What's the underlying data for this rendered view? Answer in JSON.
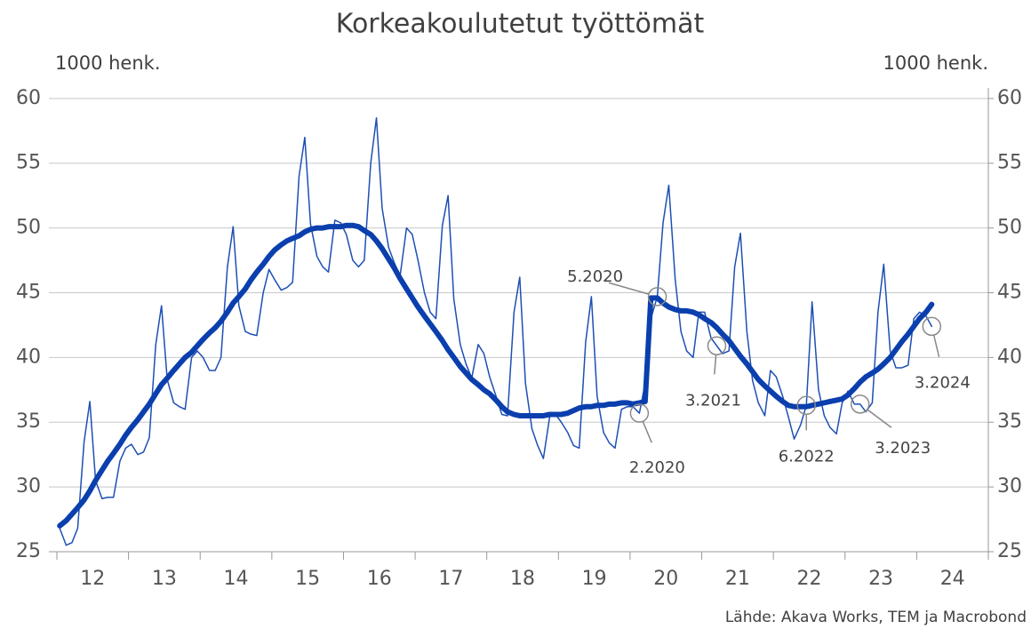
{
  "chart_data": {
    "type": "line",
    "title": "Korkeakoulutetut työttömät",
    "y_unit_left": "1000 henk.",
    "y_unit_right": "1000 henk.",
    "source": "Lähde: Akava Works, TEM ja Macrobond",
    "xlim": [
      12,
      25
    ],
    "xticks": [
      {
        "value": 12.5,
        "label": "12"
      },
      {
        "value": 13.5,
        "label": "13"
      },
      {
        "value": 14.5,
        "label": "14"
      },
      {
        "value": 15.5,
        "label": "15"
      },
      {
        "value": 16.5,
        "label": "16"
      },
      {
        "value": 17.5,
        "label": "17"
      },
      {
        "value": 18.5,
        "label": "18"
      },
      {
        "value": 19.5,
        "label": "19"
      },
      {
        "value": 20.5,
        "label": "20"
      },
      {
        "value": 21.5,
        "label": "21"
      },
      {
        "value": 22.5,
        "label": "22"
      },
      {
        "value": 23.5,
        "label": "23"
      },
      {
        "value": 24.5,
        "label": "24"
      }
    ],
    "ylim": [
      25,
      61.5
    ],
    "yticks": [
      25,
      30,
      35,
      40,
      45,
      50,
      55,
      60
    ],
    "grid": true,
    "x": [
      12.04,
      12.13,
      12.21,
      12.29,
      12.38,
      12.46,
      12.54,
      12.63,
      12.71,
      12.79,
      12.88,
      12.96,
      13.04,
      13.13,
      13.21,
      13.29,
      13.38,
      13.46,
      13.54,
      13.63,
      13.71,
      13.79,
      13.88,
      13.96,
      14.04,
      14.13,
      14.21,
      14.29,
      14.38,
      14.46,
      14.54,
      14.63,
      14.71,
      14.79,
      14.88,
      14.96,
      15.04,
      15.13,
      15.21,
      15.29,
      15.38,
      15.46,
      15.54,
      15.63,
      15.71,
      15.79,
      15.88,
      15.96,
      16.04,
      16.13,
      16.21,
      16.29,
      16.38,
      16.46,
      16.54,
      16.63,
      16.71,
      16.79,
      16.88,
      16.96,
      17.04,
      17.13,
      17.21,
      17.29,
      17.38,
      17.46,
      17.54,
      17.63,
      17.71,
      17.79,
      17.88,
      17.96,
      18.04,
      18.13,
      18.21,
      18.29,
      18.38,
      18.46,
      18.54,
      18.63,
      18.71,
      18.79,
      18.88,
      18.96,
      19.04,
      19.13,
      19.21,
      19.29,
      19.38,
      19.46,
      19.54,
      19.63,
      19.71,
      19.79,
      19.88,
      19.96,
      20.04,
      20.13,
      20.21,
      20.29,
      20.38,
      20.46,
      20.54,
      20.63,
      20.71,
      20.79,
      20.88,
      20.96,
      21.04,
      21.13,
      21.21,
      21.29,
      21.38,
      21.46,
      21.54,
      21.63,
      21.71,
      21.79,
      21.88,
      21.96,
      22.04,
      22.13,
      22.21,
      22.29,
      22.38,
      22.46,
      22.54,
      22.63,
      22.71,
      22.79,
      22.88,
      22.96,
      23.04,
      23.13,
      23.21,
      23.29,
      23.38,
      23.46,
      23.54,
      23.63,
      23.71,
      23.79,
      23.88,
      23.96,
      24.04,
      24.13,
      24.21
    ],
    "series": [
      {
        "color": "#1d4fb4",
        "width": 1.5,
        "values": [
          26.8,
          25.5,
          25.7,
          26.8,
          33.5,
          36.6,
          30.5,
          29.1,
          29.2,
          29.2,
          32,
          33,
          33.3,
          32.5,
          32.7,
          33.8,
          41,
          44,
          38.3,
          36.5,
          36.2,
          36,
          40,
          40.5,
          40,
          39,
          39,
          40,
          47,
          50.1,
          44,
          42,
          41.8,
          41.7,
          45,
          46.8,
          46,
          45.2,
          45.4,
          45.8,
          54,
          57,
          50.3,
          47.8,
          47,
          46.6,
          50.6,
          50.4,
          49.5,
          47.5,
          47,
          47.5,
          55,
          58.5,
          51.5,
          48.5,
          47.3,
          46.3,
          50,
          49.5,
          47.5,
          45,
          43.5,
          43,
          50.2,
          52.5,
          44.5,
          41,
          39.5,
          38.4,
          41,
          40.3,
          38.5,
          37,
          35.6,
          35.5,
          43.5,
          46.2,
          38,
          34.5,
          33.2,
          32.2,
          35.5,
          35.6,
          35,
          34.2,
          33.2,
          33,
          41.2,
          44.7,
          37,
          34.2,
          33.4,
          33,
          36,
          36.2,
          36.2,
          35.7,
          38,
          43,
          44.7,
          50.4,
          53.3,
          46,
          42,
          40.5,
          40,
          43.5,
          43.5,
          41.5,
          40.9,
          40.3,
          40.5,
          47,
          49.6,
          42,
          38.2,
          36.5,
          35.5,
          39,
          38.5,
          37,
          35.4,
          33.7,
          34.8,
          36.3,
          44.3,
          37.5,
          35.5,
          34.6,
          34.1,
          36.5,
          37.4,
          36.4,
          36.4,
          35.8,
          36.5,
          43.5,
          47.2,
          40.5,
          39.2,
          39.2,
          39.4,
          43,
          43.5,
          43.2,
          42.4
        ]
      },
      {
        "color": "#0a3fad",
        "width": 6,
        "values": [
          27,
          27.4,
          27.9,
          28.4,
          29,
          29.7,
          30.5,
          31.3,
          32,
          32.6,
          33.3,
          34,
          34.6,
          35.2,
          35.8,
          36.4,
          37.2,
          37.9,
          38.4,
          39,
          39.5,
          40,
          40.4,
          40.9,
          41.4,
          41.9,
          42.3,
          42.8,
          43.5,
          44.2,
          44.7,
          45.3,
          46,
          46.6,
          47.2,
          47.8,
          48.3,
          48.7,
          49,
          49.2,
          49.4,
          49.7,
          49.9,
          50,
          50,
          50.1,
          50.1,
          50.1,
          50.2,
          50.2,
          50.1,
          49.8,
          49.5,
          49,
          48.4,
          47.6,
          46.9,
          46.1,
          45.3,
          44.6,
          43.9,
          43.2,
          42.6,
          42,
          41.3,
          40.6,
          40,
          39.3,
          38.8,
          38.3,
          37.9,
          37.5,
          37.2,
          36.7,
          36.2,
          35.8,
          35.6,
          35.5,
          35.5,
          35.5,
          35.5,
          35.5,
          35.6,
          35.6,
          35.6,
          35.7,
          35.9,
          36.1,
          36.2,
          36.2,
          36.3,
          36.3,
          36.4,
          36.4,
          36.5,
          36.5,
          36.4,
          36.5,
          36.6,
          44.6,
          44.6,
          44.2,
          43.9,
          43.7,
          43.6,
          43.6,
          43.5,
          43.3,
          43,
          42.7,
          42.3,
          41.8,
          41.3,
          40.7,
          40.1,
          39.5,
          38.9,
          38.3,
          37.8,
          37.4,
          37,
          36.6,
          36.3,
          36.2,
          36.2,
          36.2,
          36.3,
          36.4,
          36.5,
          36.6,
          36.7,
          36.8,
          37.1,
          37.6,
          38.1,
          38.5,
          38.8,
          39.1,
          39.5,
          40,
          40.6,
          41.2,
          41.8,
          42.4,
          43,
          43.5,
          44.1
        ]
      }
    ],
    "annotations": [
      {
        "text": "2.2020",
        "x": 20.13,
        "y": 35.7
      },
      {
        "text": "5.2020",
        "x": 20.38,
        "y": 44.7
      },
      {
        "text": "3.2021",
        "x": 21.21,
        "y": 40.9
      },
      {
        "text": "6.2022",
        "x": 22.46,
        "y": 36.3
      },
      {
        "text": "3.2023",
        "x": 23.21,
        "y": 36.4
      },
      {
        "text": "3.2024",
        "x": 24.21,
        "y": 42.4
      }
    ]
  }
}
